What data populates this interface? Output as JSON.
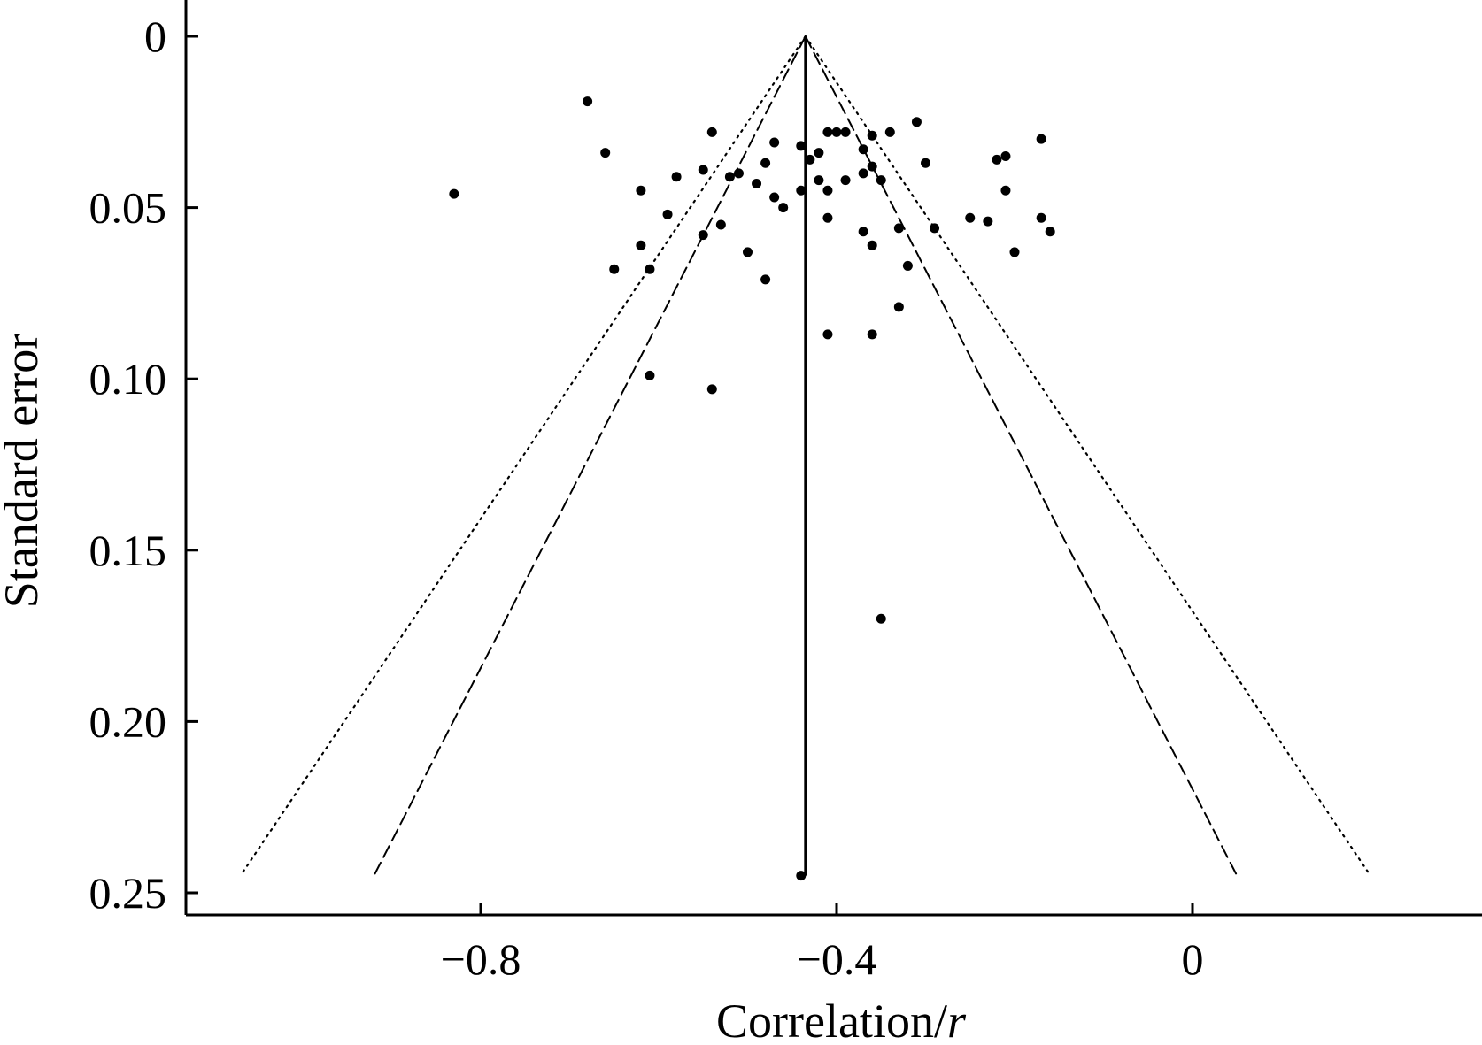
{
  "chart_data": {
    "type": "scatter",
    "subtype": "funnel plot",
    "title": "",
    "xlabel": "Correlation/r",
    "ylabel": "Standard error",
    "xlim": [
      -1.08,
      0.27
    ],
    "ylim": [
      0.25,
      0
    ],
    "y_axis_inverted": true,
    "x_ticks": [
      {
        "value": -0.8,
        "label": "−0.8"
      },
      {
        "value": -0.4,
        "label": "−0.4"
      },
      {
        "value": 0,
        "label": "0"
      }
    ],
    "y_ticks": [
      {
        "value": 0,
        "label": "0"
      },
      {
        "value": 0.05,
        "label": "0.05"
      },
      {
        "value": 0.1,
        "label": "0.10"
      },
      {
        "value": 0.15,
        "label": "0.15"
      },
      {
        "value": 0.2,
        "label": "0.20"
      },
      {
        "value": 0.25,
        "label": "0.25"
      }
    ],
    "grid": false,
    "legend": "none",
    "pooled_estimate": -0.435,
    "funnel_limits": [
      {
        "style": "dashed",
        "apex": [
          -0.435,
          0
        ],
        "left_end": [
          -0.92,
          0.245
        ],
        "right_end": [
          0.05,
          0.245
        ]
      },
      {
        "style": "dotted",
        "apex": [
          -0.435,
          0
        ],
        "left_end": [
          -1.07,
          0.245
        ],
        "right_end": [
          0.2,
          0.245
        ]
      }
    ],
    "points": [
      {
        "x": -0.68,
        "y": 0.019
      },
      {
        "x": -0.83,
        "y": 0.046
      },
      {
        "x": -0.66,
        "y": 0.034
      },
      {
        "x": -0.62,
        "y": 0.045
      },
      {
        "x": -0.58,
        "y": 0.041
      },
      {
        "x": -0.54,
        "y": 0.028
      },
      {
        "x": -0.55,
        "y": 0.039
      },
      {
        "x": -0.52,
        "y": 0.041
      },
      {
        "x": -0.51,
        "y": 0.04
      },
      {
        "x": -0.49,
        "y": 0.043
      },
      {
        "x": -0.48,
        "y": 0.037
      },
      {
        "x": -0.47,
        "y": 0.031
      },
      {
        "x": -0.44,
        "y": 0.032
      },
      {
        "x": -0.43,
        "y": 0.036
      },
      {
        "x": -0.42,
        "y": 0.034
      },
      {
        "x": -0.41,
        "y": 0.028
      },
      {
        "x": -0.4,
        "y": 0.028
      },
      {
        "x": -0.39,
        "y": 0.028
      },
      {
        "x": -0.37,
        "y": 0.033
      },
      {
        "x": -0.36,
        "y": 0.029
      },
      {
        "x": -0.34,
        "y": 0.028
      },
      {
        "x": -0.31,
        "y": 0.025
      },
      {
        "x": -0.36,
        "y": 0.038
      },
      {
        "x": -0.37,
        "y": 0.04
      },
      {
        "x": -0.39,
        "y": 0.042
      },
      {
        "x": -0.42,
        "y": 0.042
      },
      {
        "x": -0.35,
        "y": 0.042
      },
      {
        "x": -0.3,
        "y": 0.037
      },
      {
        "x": -0.47,
        "y": 0.047
      },
      {
        "x": -0.46,
        "y": 0.05
      },
      {
        "x": -0.44,
        "y": 0.045
      },
      {
        "x": -0.41,
        "y": 0.045
      },
      {
        "x": -0.59,
        "y": 0.052
      },
      {
        "x": -0.53,
        "y": 0.055
      },
      {
        "x": -0.55,
        "y": 0.058
      },
      {
        "x": -0.62,
        "y": 0.061
      },
      {
        "x": -0.61,
        "y": 0.068
      },
      {
        "x": -0.65,
        "y": 0.068
      },
      {
        "x": -0.5,
        "y": 0.063
      },
      {
        "x": -0.48,
        "y": 0.071
      },
      {
        "x": -0.41,
        "y": 0.053
      },
      {
        "x": -0.37,
        "y": 0.057
      },
      {
        "x": -0.33,
        "y": 0.056
      },
      {
        "x": -0.36,
        "y": 0.061
      },
      {
        "x": -0.32,
        "y": 0.067
      },
      {
        "x": -0.29,
        "y": 0.056
      },
      {
        "x": -0.25,
        "y": 0.053
      },
      {
        "x": -0.23,
        "y": 0.054
      },
      {
        "x": -0.22,
        "y": 0.036
      },
      {
        "x": -0.21,
        "y": 0.035
      },
      {
        "x": -0.17,
        "y": 0.03
      },
      {
        "x": -0.21,
        "y": 0.045
      },
      {
        "x": -0.17,
        "y": 0.053
      },
      {
        "x": -0.16,
        "y": 0.057
      },
      {
        "x": -0.2,
        "y": 0.063
      },
      {
        "x": -0.33,
        "y": 0.079
      },
      {
        "x": -0.41,
        "y": 0.087
      },
      {
        "x": -0.36,
        "y": 0.087
      },
      {
        "x": -0.61,
        "y": 0.099
      },
      {
        "x": -0.54,
        "y": 0.103
      },
      {
        "x": -0.35,
        "y": 0.17
      },
      {
        "x": -0.44,
        "y": 0.245
      }
    ]
  },
  "colors": {
    "background": "#ffffff",
    "foreground": "#000000"
  }
}
